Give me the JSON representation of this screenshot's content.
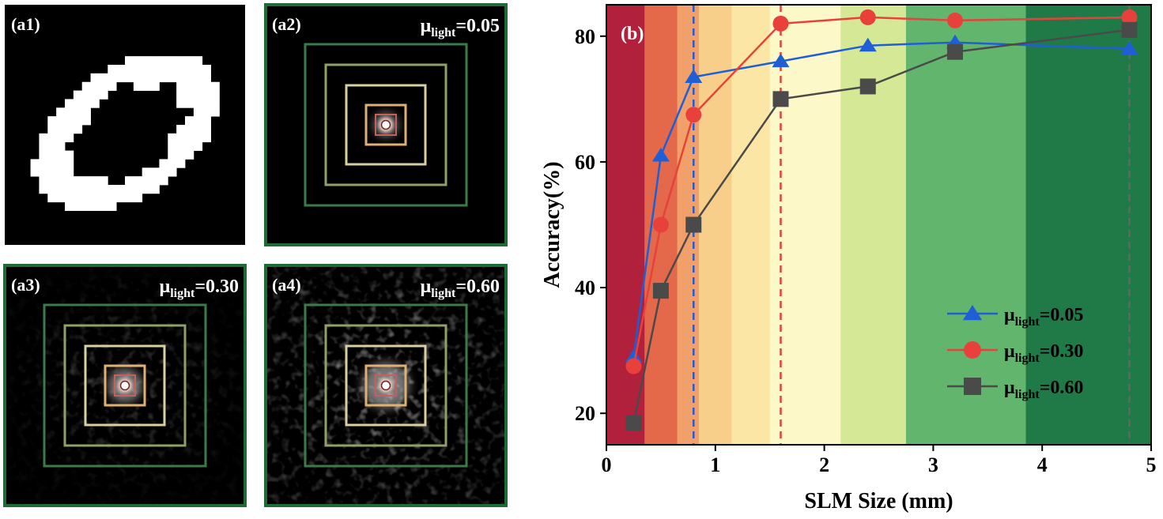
{
  "panels": [
    {
      "id": "a1",
      "tag": "(a1)",
      "mu_value": "",
      "kind": "digit"
    },
    {
      "id": "a2",
      "tag": "(a2)",
      "mu_value": "=0.05",
      "kind": "spot",
      "spread": 0.05
    },
    {
      "id": "a3",
      "tag": "(a3)",
      "mu_value": "=0.30",
      "kind": "spot",
      "spread": 0.3
    },
    {
      "id": "a4",
      "tag": "(a4)",
      "mu_value": "=0.60",
      "kind": "spot",
      "spread": 0.6
    }
  ],
  "mu_symbol": "μ",
  "mu_subscript": "light",
  "colors": {
    "panel_border": "#1d6b35",
    "series_blue": "#1f5fd6",
    "series_red": "#e8413c",
    "series_gray": "#4a4a4a",
    "square_outer": "#3c7a4a",
    "square_mid": "#8fa06a",
    "square_inner": "#d8d0a0",
    "square_small": "#e0b070",
    "square_core": "#c8605a"
  },
  "chart_data": {
    "type": "line",
    "tag": "(b)",
    "xlabel": "SLM Size (mm)",
    "ylabel": "Accuracy(%)",
    "xlim": [
      0,
      5
    ],
    "ylim": [
      15,
      85
    ],
    "xticks": [
      0,
      1,
      2,
      3,
      4,
      5
    ],
    "yticks": [
      20,
      40,
      60,
      80
    ],
    "legend_position": "bottom-right",
    "series": [
      {
        "name_value": "=0.05",
        "marker": "triangle",
        "color": "#1f5fd6",
        "x": [
          0.25,
          0.5,
          0.8,
          1.6,
          2.4,
          3.2,
          4.8
        ],
        "y": [
          29,
          61,
          73.5,
          76,
          78.5,
          79,
          78
        ]
      },
      {
        "name_value": "=0.30",
        "marker": "circle",
        "color": "#e8413c",
        "x": [
          0.25,
          0.5,
          0.8,
          1.6,
          2.4,
          3.2,
          4.8
        ],
        "y": [
          27.5,
          50,
          67.5,
          82,
          83,
          82.5,
          83
        ]
      },
      {
        "name_value": "=0.60",
        "marker": "square",
        "color": "#4a4a4a",
        "x": [
          0.25,
          0.5,
          0.8,
          1.6,
          2.4,
          3.2,
          4.8
        ],
        "y": [
          18.5,
          39.5,
          50,
          70,
          72,
          77.5,
          81
        ]
      }
    ],
    "vlines": [
      {
        "x": 0.8,
        "color": "#1f5fd6"
      },
      {
        "x": 1.6,
        "color": "#e8413c"
      },
      {
        "x": 4.8,
        "color": "#666666"
      }
    ],
    "background_bands": [
      {
        "x0": 0.0,
        "x1": 0.35,
        "color": "#b2213c"
      },
      {
        "x0": 0.35,
        "x1": 0.65,
        "color": "#e4684a"
      },
      {
        "x0": 0.65,
        "x1": 0.85,
        "color": "#f2a06a"
      },
      {
        "x0": 0.85,
        "x1": 1.15,
        "color": "#f8cf8a"
      },
      {
        "x0": 1.15,
        "x1": 1.5,
        "color": "#fce6a6"
      },
      {
        "x0": 1.5,
        "x1": 2.15,
        "color": "#fdf8c8"
      },
      {
        "x0": 2.15,
        "x1": 2.75,
        "color": "#d4e896"
      },
      {
        "x0": 2.75,
        "x1": 3.85,
        "color": "#62b56c"
      },
      {
        "x0": 3.85,
        "x1": 5.0,
        "color": "#1f7a48"
      }
    ]
  }
}
